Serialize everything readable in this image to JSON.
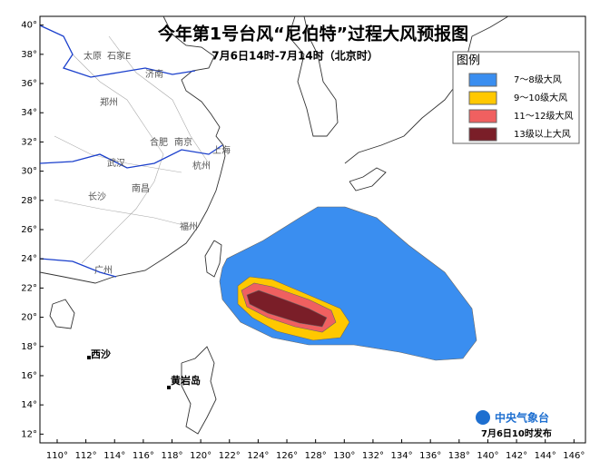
{
  "map": {
    "title": "今年第1号台风“尼伯特”过程大风预报图",
    "subtitle": "7月6日14时-7月14时（北京时）",
    "lonlim": [
      108.8,
      146.8
    ],
    "latlim": [
      11.4,
      40.6
    ],
    "lonticks": [
      {
        "value": 110,
        "label": "110°"
      },
      {
        "value": 112,
        "label": "112°"
      },
      {
        "value": 114,
        "label": "114°"
      },
      {
        "value": 116,
        "label": "116°"
      },
      {
        "value": 118,
        "label": "118°"
      },
      {
        "value": 120,
        "label": "120°"
      },
      {
        "value": 122,
        "label": "122°"
      },
      {
        "value": 124,
        "label": "124°"
      },
      {
        "value": 126,
        "label": "126°"
      },
      {
        "value": 128,
        "label": "128°"
      },
      {
        "value": 130,
        "label": "130°"
      },
      {
        "value": 132,
        "label": "132°"
      },
      {
        "value": 134,
        "label": "134°"
      },
      {
        "value": 136,
        "label": "136°"
      },
      {
        "value": 138,
        "label": "138°"
      },
      {
        "value": 140,
        "label": "140°"
      },
      {
        "value": 142,
        "label": "142°"
      },
      {
        "value": 144,
        "label": "144°"
      },
      {
        "value": 146,
        "label": "146°"
      }
    ],
    "latticks": [
      {
        "value": 12,
        "label": "12°"
      },
      {
        "value": 14,
        "label": "14°"
      },
      {
        "value": 16,
        "label": "16°"
      },
      {
        "value": 18,
        "label": "18°"
      },
      {
        "value": 20,
        "label": "20°"
      },
      {
        "value": 22,
        "label": "22°"
      },
      {
        "value": 24,
        "label": "24°"
      },
      {
        "value": 26,
        "label": "26°"
      },
      {
        "value": 28,
        "label": "28°"
      },
      {
        "value": 30,
        "label": "30°"
      },
      {
        "value": 32,
        "label": "32°"
      },
      {
        "value": 34,
        "label": "34°"
      },
      {
        "value": 36,
        "label": "36°"
      },
      {
        "value": 38,
        "label": "38°"
      },
      {
        "value": 40,
        "label": "40°"
      }
    ],
    "legend": {
      "title": "图例",
      "items": [
        {
          "label": "7～8级大风",
          "color": "#3a8ef0"
        },
        {
          "label": "9～10级大风",
          "color": "#ffc800"
        },
        {
          "label": "11～12级大风",
          "color": "#f06060"
        },
        {
          "label": "13级以上大风",
          "color": "#7a1e28"
        }
      ]
    },
    "places": [
      "太原",
      "石家E",
      "济南",
      "郑州",
      "合肥",
      "南京",
      "武汉",
      "杭州",
      "上海",
      "南昌",
      "长沙",
      "福州",
      "广州",
      "西沙",
      "黄岩岛"
    ],
    "agency": "中央气象台",
    "issued": "7月6日10时发布"
  }
}
